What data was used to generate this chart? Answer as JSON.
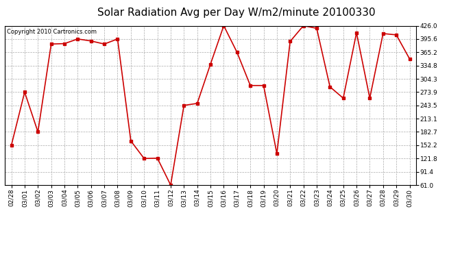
{
  "title": "Solar Radiation Avg per Day W/m2/minute 20100330",
  "copyright_text": "Copyright 2010 Cartronics.com",
  "dates": [
    "02/28",
    "03/01",
    "03/02",
    "03/03",
    "03/04",
    "03/05",
    "03/06",
    "03/07",
    "03/08",
    "03/09",
    "03/10",
    "03/11",
    "03/12",
    "03/13",
    "03/14",
    "03/15",
    "03/16",
    "03/17",
    "03/18",
    "03/19",
    "03/20",
    "03/21",
    "03/22",
    "03/23",
    "03/24",
    "03/25",
    "03/26",
    "03/27",
    "03/28",
    "03/29",
    "03/30"
  ],
  "values": [
    152.2,
    273.9,
    182.7,
    384.0,
    385.0,
    395.6,
    391.0,
    384.0,
    395.6,
    162.0,
    121.8,
    122.5,
    61.0,
    243.5,
    248.0,
    338.0,
    426.0,
    365.0,
    289.0,
    289.0,
    133.0,
    390.0,
    426.0,
    420.0,
    286.0,
    260.0,
    410.0,
    260.0,
    408.0,
    405.0,
    350.0
  ],
  "line_color": "#cc0000",
  "marker": "s",
  "marker_size": 2.5,
  "bg_color": "#ffffff",
  "plot_bg_color": "#ffffff",
  "grid_color": "#aaaaaa",
  "ylim": [
    61.0,
    426.0
  ],
  "yticks": [
    61.0,
    91.4,
    121.8,
    152.2,
    182.7,
    213.1,
    243.5,
    273.9,
    304.3,
    334.8,
    365.2,
    395.6,
    426.0
  ],
  "title_fontsize": 11,
  "tick_fontsize": 6.5,
  "copyright_fontsize": 6
}
